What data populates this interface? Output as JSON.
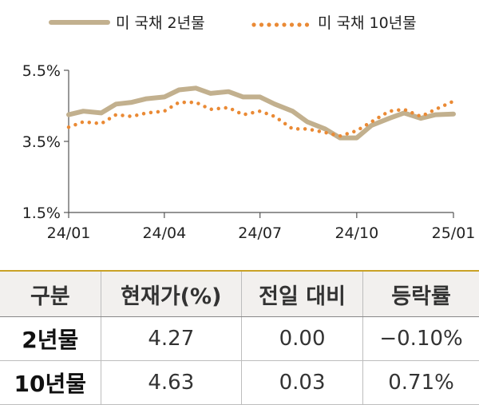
{
  "chart_data": {
    "type": "line",
    "title": "",
    "xlabel": "",
    "ylabel": "",
    "ylim": [
      1.5,
      5.5
    ],
    "xlim": [
      "2024-01-01",
      "2025-01-01"
    ],
    "yticks": [
      "1.5%",
      "3.5%",
      "5.5%"
    ],
    "xticks": [
      {
        "date": "2024-01-01",
        "label": "24/01"
      },
      {
        "date": "2024-04-01",
        "label": "24/04"
      },
      {
        "date": "2024-07-01",
        "label": "24/07"
      },
      {
        "date": "2024-10-01",
        "label": "24/10"
      },
      {
        "date": "2025-01-01",
        "label": "25/01"
      }
    ],
    "legend_position": "top",
    "series": [
      {
        "name": "미 국채 2년물",
        "style": "solid",
        "color": "#c2b08e",
        "points": [
          [
            "2024-01-01",
            4.25
          ],
          [
            "2024-01-15",
            4.35
          ],
          [
            "2024-02-01",
            4.3
          ],
          [
            "2024-02-15",
            4.55
          ],
          [
            "2024-03-01",
            4.6
          ],
          [
            "2024-03-15",
            4.7
          ],
          [
            "2024-04-01",
            4.75
          ],
          [
            "2024-04-15",
            4.95
          ],
          [
            "2024-05-01",
            5.0
          ],
          [
            "2024-05-15",
            4.85
          ],
          [
            "2024-06-01",
            4.9
          ],
          [
            "2024-06-15",
            4.75
          ],
          [
            "2024-07-01",
            4.75
          ],
          [
            "2024-07-15",
            4.55
          ],
          [
            "2024-08-01",
            4.35
          ],
          [
            "2024-08-15",
            4.05
          ],
          [
            "2024-09-01",
            3.85
          ],
          [
            "2024-09-15",
            3.6
          ],
          [
            "2024-10-01",
            3.6
          ],
          [
            "2024-10-15",
            3.95
          ],
          [
            "2024-11-01",
            4.15
          ],
          [
            "2024-11-15",
            4.3
          ],
          [
            "2024-12-01",
            4.15
          ],
          [
            "2024-12-15",
            4.25
          ],
          [
            "2025-01-01",
            4.27
          ]
        ]
      },
      {
        "name": "미 국채 10년물",
        "style": "dotted",
        "color": "#ea8a35",
        "points": [
          [
            "2024-01-01",
            3.9
          ],
          [
            "2024-01-15",
            4.05
          ],
          [
            "2024-02-01",
            4.0
          ],
          [
            "2024-02-15",
            4.25
          ],
          [
            "2024-03-01",
            4.2
          ],
          [
            "2024-03-15",
            4.3
          ],
          [
            "2024-04-01",
            4.35
          ],
          [
            "2024-04-15",
            4.6
          ],
          [
            "2024-05-01",
            4.6
          ],
          [
            "2024-05-15",
            4.4
          ],
          [
            "2024-06-01",
            4.45
          ],
          [
            "2024-06-15",
            4.25
          ],
          [
            "2024-07-01",
            4.35
          ],
          [
            "2024-07-15",
            4.2
          ],
          [
            "2024-08-01",
            3.85
          ],
          [
            "2024-08-15",
            3.85
          ],
          [
            "2024-09-01",
            3.75
          ],
          [
            "2024-09-15",
            3.65
          ],
          [
            "2024-10-01",
            3.8
          ],
          [
            "2024-10-15",
            4.05
          ],
          [
            "2024-11-01",
            4.35
          ],
          [
            "2024-11-15",
            4.4
          ],
          [
            "2024-12-01",
            4.2
          ],
          [
            "2024-12-15",
            4.4
          ],
          [
            "2025-01-01",
            4.63
          ]
        ]
      }
    ]
  },
  "table": {
    "headers": [
      "구분",
      "현재가(%)",
      "전일 대비",
      "등락률"
    ],
    "rows": [
      {
        "label": "2년물",
        "price": "4.27",
        "change": "0.00",
        "rate": "−0.10%"
      },
      {
        "label": "10년물",
        "price": "4.63",
        "change": "0.03",
        "rate": "0.71%"
      }
    ]
  }
}
